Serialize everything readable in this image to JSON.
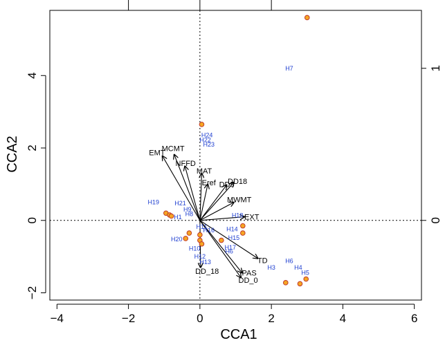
{
  "chart_data": {
    "type": "scatter",
    "title": "",
    "xlabel": "CCA1",
    "ylabel": "CCA2",
    "xlim": [
      -4.2,
      6.2
    ],
    "ylim": [
      -2.2,
      5.8
    ],
    "x_ticks": [
      -4,
      -2,
      0,
      2,
      4,
      6
    ],
    "y_ticks": [
      -2,
      0,
      2,
      4
    ],
    "top_ticks": [
      -2,
      0,
      2
    ],
    "right_ticks": [
      0,
      1
    ],
    "right_tick_scale": 4.2,
    "zero_lines": true,
    "grid": false,
    "colors": {
      "point_fill": "#f5a623",
      "point_stroke": "#c0392b",
      "site_label": "#1f3fd0",
      "arrow": "#000000",
      "axis": "#000000"
    },
    "points": [
      {
        "x": 3.0,
        "y": 5.6
      },
      {
        "x": 0.05,
        "y": 2.65
      },
      {
        "x": -0.95,
        "y": 0.2
      },
      {
        "x": -0.85,
        "y": 0.15
      },
      {
        "x": -0.8,
        "y": 0.12
      },
      {
        "x": -0.3,
        "y": -0.35
      },
      {
        "x": -0.4,
        "y": -0.5
      },
      {
        "x": 0.0,
        "y": -0.4
      },
      {
        "x": 0.0,
        "y": -0.55
      },
      {
        "x": 0.05,
        "y": -0.65
      },
      {
        "x": 0.6,
        "y": -0.55
      },
      {
        "x": 1.2,
        "y": -0.15
      },
      {
        "x": 1.2,
        "y": -0.35
      },
      {
        "x": 2.4,
        "y": -1.72
      },
      {
        "x": 2.8,
        "y": -1.75
      },
      {
        "x": 2.97,
        "y": -1.62
      }
    ],
    "sites": [
      {
        "label": "H7",
        "x": 2.5,
        "y": 4.2
      },
      {
        "label": "H24",
        "x": 0.2,
        "y": 2.35
      },
      {
        "label": "H22",
        "x": 0.15,
        "y": 2.22
      },
      {
        "label": "H23",
        "x": 0.25,
        "y": 2.1
      },
      {
        "label": "H19",
        "x": -1.3,
        "y": 0.5
      },
      {
        "label": "H21",
        "x": -0.55,
        "y": 0.47
      },
      {
        "label": "H9",
        "x": -0.35,
        "y": 0.3
      },
      {
        "label": "H8",
        "x": -0.3,
        "y": 0.18
      },
      {
        "label": "H1",
        "x": -0.62,
        "y": 0.09
      },
      {
        "label": "H18",
        "x": 1.05,
        "y": 0.14
      },
      {
        "label": "H14",
        "x": 0.9,
        "y": -0.24
      },
      {
        "label": "H11",
        "x": 0.05,
        "y": -0.18
      },
      {
        "label": "H16",
        "x": 0.25,
        "y": -0.27
      },
      {
        "label": "H20",
        "x": -0.65,
        "y": -0.52
      },
      {
        "label": "H15",
        "x": 0.95,
        "y": -0.48
      },
      {
        "label": "H10",
        "x": -0.15,
        "y": -0.78
      },
      {
        "label": "H17",
        "x": 0.85,
        "y": -0.75
      },
      {
        "label": "H6",
        "x": 0.82,
        "y": -0.85
      },
      {
        "label": "H12",
        "x": 0.0,
        "y": -1.0
      },
      {
        "label": "H13",
        "x": 0.15,
        "y": -1.15
      },
      {
        "label": "H3",
        "x": 2.0,
        "y": -1.3
      },
      {
        "label": "H6",
        "x": 2.5,
        "y": -1.12
      },
      {
        "label": "H4",
        "x": 2.75,
        "y": -1.3
      },
      {
        "label": "H5",
        "x": 2.95,
        "y": -1.45
      }
    ],
    "arrows": [
      {
        "label": "EMT",
        "x": -1.05,
        "y": 1.78,
        "lx": -1.2,
        "ly": 1.88
      },
      {
        "label": "MCMT",
        "x": -0.72,
        "y": 1.82,
        "lx": -0.75,
        "ly": 1.99
      },
      {
        "label": "NFFD",
        "x": -0.42,
        "y": 1.5,
        "lx": -0.4,
        "ly": 1.58
      },
      {
        "label": "MAT",
        "x": 0.05,
        "y": 1.3,
        "lx": 0.12,
        "ly": 1.37
      },
      {
        "label": "Eref",
        "x": 0.22,
        "y": 1.0,
        "lx": 0.25,
        "ly": 1.05
      },
      {
        "label": "DD18",
        "x": 0.95,
        "y": 1.05,
        "lx": 1.05,
        "ly": 1.08
      },
      {
        "label": "DD5",
        "x": 0.75,
        "y": 0.98,
        "lx": 0.75,
        "ly": 1.0
      },
      {
        "label": "MWMT",
        "x": 0.95,
        "y": 0.5,
        "lx": 1.1,
        "ly": 0.58
      },
      {
        "label": "EXT",
        "x": 1.25,
        "y": 0.1,
        "lx": 1.45,
        "ly": 0.1
      },
      {
        "label": "TD",
        "x": 1.62,
        "y": -1.05,
        "lx": 1.75,
        "ly": -1.1
      },
      {
        "label": "PAS",
        "x": 1.18,
        "y": -1.45,
        "lx": 1.38,
        "ly": -1.45
      },
      {
        "label": "DD_0",
        "x": 1.15,
        "y": -1.58,
        "lx": 1.35,
        "ly": -1.65
      },
      {
        "label": "DD_18",
        "x": 0.02,
        "y": -1.3,
        "lx": 0.2,
        "ly": -1.4
      }
    ]
  }
}
